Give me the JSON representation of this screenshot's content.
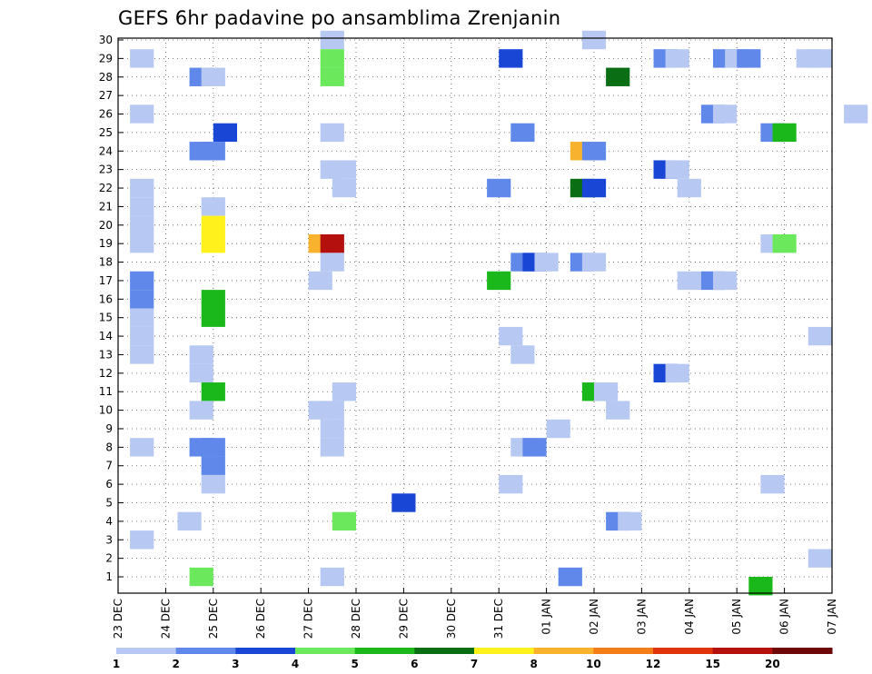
{
  "chart_data": {
    "type": "heatmap",
    "title": "GEFS 6hr padavine po ansamblima Zrenjanin",
    "x_labels": [
      "23 DEC",
      "24 DEC",
      "25 DEC",
      "26 DEC",
      "27 DEC",
      "28 DEC",
      "29 DEC",
      "30 DEC",
      "31 DEC",
      "01 JAN",
      "02 JAN",
      "03 JAN",
      "04 JAN",
      "05 JAN",
      "06 JAN",
      "07 JAN"
    ],
    "y_labels": [
      "1",
      "2",
      "3",
      "4",
      "5",
      "6",
      "7",
      "8",
      "9",
      "10",
      "11",
      "12",
      "13",
      "14",
      "15",
      "16",
      "17",
      "18",
      "19",
      "20",
      "21",
      "22",
      "23",
      "24",
      "25",
      "26",
      "27",
      "28",
      "29",
      "30"
    ],
    "x_range": [
      0,
      60
    ],
    "y_range": [
      0.5,
      30.5
    ],
    "steps_per_day": 4,
    "grid": true,
    "colorbar": {
      "position": "bottom",
      "levels": [
        1,
        2,
        3,
        4,
        5,
        6,
        7,
        8,
        10,
        12,
        15,
        20
      ],
      "colors": [
        "#b7c9f3",
        "#5f88ea",
        "#1a46d6",
        "#6ce85c",
        "#1ab81a",
        "#0a6e14",
        "#fff21c",
        "#f8b22e",
        "#f57d18",
        "#e0340c",
        "#b3100e",
        "#6e0808"
      ]
    },
    "cells": [
      [
        0.5,
        29,
        "#b7c9f3"
      ],
      [
        3.0,
        28,
        "#5f88ea"
      ],
      [
        3.5,
        28,
        "#b7c9f3"
      ],
      [
        8.5,
        30,
        "#b7c9f3"
      ],
      [
        8.5,
        29,
        "#6ce85c"
      ],
      [
        8.5,
        28,
        "#6ce85c"
      ],
      [
        16.0,
        29,
        "#1a46d6"
      ],
      [
        19.5,
        30,
        "#b7c9f3"
      ],
      [
        20.5,
        28,
        "#0a6e14"
      ],
      [
        22.5,
        29,
        "#5f88ea"
      ],
      [
        23.0,
        29,
        "#b7c9f3"
      ],
      [
        25.0,
        29,
        "#5f88ea"
      ],
      [
        25.5,
        29,
        "#b7c9f3"
      ],
      [
        26.0,
        29,
        "#5f88ea"
      ],
      [
        28.5,
        29,
        "#b7c9f3"
      ],
      [
        29.0,
        29,
        "#b7c9f3"
      ],
      [
        0.5,
        26,
        "#b7c9f3"
      ],
      [
        24.5,
        26,
        "#5f88ea"
      ],
      [
        25.0,
        26,
        "#b7c9f3"
      ],
      [
        30.5,
        26,
        "#b7c9f3"
      ],
      [
        4.0,
        25,
        "#1a46d6"
      ],
      [
        8.5,
        25,
        "#b7c9f3"
      ],
      [
        16.5,
        25,
        "#5f88ea"
      ],
      [
        27.0,
        25,
        "#5f88ea"
      ],
      [
        27.5,
        25,
        "#1ab81a"
      ],
      [
        3.0,
        24,
        "#5f88ea"
      ],
      [
        3.5,
        24,
        "#5f88ea"
      ],
      [
        19.0,
        24,
        "#f8b22e"
      ],
      [
        19.5,
        24,
        "#5f88ea"
      ],
      [
        8.5,
        23,
        "#b7c9f3"
      ],
      [
        9.0,
        23,
        "#b7c9f3"
      ],
      [
        22.5,
        23,
        "#1a46d6"
      ],
      [
        23.0,
        23,
        "#b7c9f3"
      ],
      [
        0.5,
        22,
        "#b7c9f3"
      ],
      [
        9.0,
        22,
        "#b7c9f3"
      ],
      [
        15.5,
        22,
        "#5f88ea"
      ],
      [
        19.0,
        22,
        "#0a6e14"
      ],
      [
        19.5,
        22,
        "#1a46d6"
      ],
      [
        23.5,
        22,
        "#b7c9f3"
      ],
      [
        0.5,
        21,
        "#b7c9f3"
      ],
      [
        3.5,
        21,
        "#b7c9f3"
      ],
      [
        0.5,
        20,
        "#b7c9f3"
      ],
      [
        3.5,
        20,
        "#fff21c"
      ],
      [
        0.5,
        19,
        "#b7c9f3"
      ],
      [
        3.5,
        19,
        "#fff21c"
      ],
      [
        8.0,
        19,
        "#f8b22e"
      ],
      [
        8.5,
        19,
        "#b3100e"
      ],
      [
        27.0,
        19,
        "#b7c9f3"
      ],
      [
        27.5,
        19,
        "#6ce85c"
      ],
      [
        8.5,
        18,
        "#b7c9f3"
      ],
      [
        16.5,
        18,
        "#5f88ea"
      ],
      [
        17.0,
        18,
        "#1a46d6"
      ],
      [
        17.5,
        18,
        "#b7c9f3"
      ],
      [
        19.0,
        18,
        "#5f88ea"
      ],
      [
        19.5,
        18,
        "#b7c9f3"
      ],
      [
        0.5,
        17,
        "#5f88ea"
      ],
      [
        8.0,
        17,
        "#b7c9f3"
      ],
      [
        15.5,
        17,
        "#1ab81a"
      ],
      [
        23.5,
        17,
        "#b7c9f3"
      ],
      [
        24.5,
        17,
        "#5f88ea"
      ],
      [
        25.0,
        17,
        "#b7c9f3"
      ],
      [
        0.5,
        16,
        "#5f88ea"
      ],
      [
        3.5,
        16,
        "#1ab81a"
      ],
      [
        3.5,
        15,
        "#1ab81a"
      ],
      [
        0.5,
        15,
        "#b7c9f3"
      ],
      [
        0.5,
        14,
        "#b7c9f3"
      ],
      [
        16.0,
        14,
        "#b7c9f3"
      ],
      [
        29.0,
        14,
        "#b7c9f3"
      ],
      [
        0.5,
        13,
        "#b7c9f3"
      ],
      [
        3.0,
        13,
        "#b7c9f3"
      ],
      [
        16.5,
        13,
        "#b7c9f3"
      ],
      [
        3.0,
        12,
        "#b7c9f3"
      ],
      [
        22.5,
        12,
        "#1a46d6"
      ],
      [
        23.0,
        12,
        "#b7c9f3"
      ],
      [
        3.5,
        11,
        "#1ab81a"
      ],
      [
        9.0,
        11,
        "#b7c9f3"
      ],
      [
        19.5,
        11,
        "#1ab81a"
      ],
      [
        20.0,
        11,
        "#b7c9f3"
      ],
      [
        3.0,
        10,
        "#b7c9f3"
      ],
      [
        8.0,
        10,
        "#b7c9f3"
      ],
      [
        8.5,
        10,
        "#b7c9f3"
      ],
      [
        20.5,
        10,
        "#b7c9f3"
      ],
      [
        8.5,
        9,
        "#b7c9f3"
      ],
      [
        18.0,
        9,
        "#b7c9f3"
      ],
      [
        0.5,
        8,
        "#b7c9f3"
      ],
      [
        3.0,
        8,
        "#5f88ea"
      ],
      [
        3.5,
        8,
        "#5f88ea"
      ],
      [
        8.5,
        8,
        "#b7c9f3"
      ],
      [
        16.5,
        8,
        "#b7c9f3"
      ],
      [
        17.0,
        8,
        "#5f88ea"
      ],
      [
        3.5,
        7,
        "#5f88ea"
      ],
      [
        3.5,
        6,
        "#b7c9f3"
      ],
      [
        16.0,
        6,
        "#b7c9f3"
      ],
      [
        27.0,
        6,
        "#b7c9f3"
      ],
      [
        11.5,
        5,
        "#1a46d6"
      ],
      [
        2.5,
        4,
        "#b7c9f3"
      ],
      [
        9.0,
        4,
        "#6ce85c"
      ],
      [
        20.5,
        4,
        "#5f88ea"
      ],
      [
        21.0,
        4,
        "#b7c9f3"
      ],
      [
        0.5,
        3,
        "#b7c9f3"
      ],
      [
        29.0,
        2,
        "#b7c9f3"
      ],
      [
        3.0,
        1,
        "#6ce85c"
      ],
      [
        8.5,
        1,
        "#b7c9f3"
      ],
      [
        18.5,
        1,
        "#5f88ea"
      ],
      [
        26.5,
        0.5,
        "#1ab81a"
      ]
    ]
  }
}
